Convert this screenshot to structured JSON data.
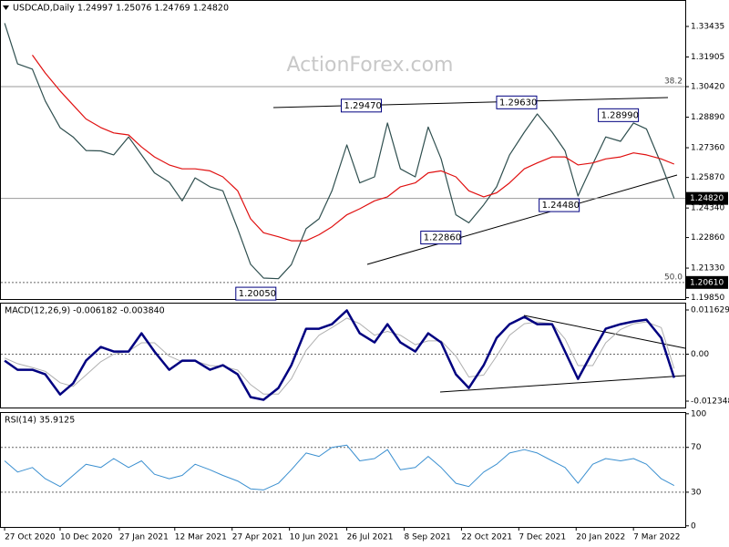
{
  "watermark": "ActionForex.com",
  "chart_data": [
    {
      "type": "line",
      "title": "USDCAD,Daily 1.24997 1.25076 1.24769 1.24820",
      "x": [
        0,
        7,
        15,
        22,
        30,
        37,
        44,
        52,
        59,
        67,
        74,
        81,
        89,
        96,
        103,
        111,
        118,
        126,
        133,
        140,
        148,
        155,
        163,
        170,
        177,
        185,
        192,
        200,
        207,
        214,
        222,
        229,
        236,
        244,
        251,
        259,
        266,
        273,
        281,
        288,
        296,
        303,
        310,
        318,
        325,
        333,
        340,
        347,
        355,
        362
      ],
      "xlim": [
        -2.5,
        368
      ],
      "ylim": [
        1.1978,
        1.3476
      ],
      "yticks": [
        1.33435,
        1.31905,
        {
          "value": 1.3042,
          "label": "1.30420"
        },
        {
          "value": 1.2889,
          "label": "1.28890"
        },
        {
          "value": 1.2736,
          "label": "1.27360"
        },
        {
          "value": 1.2587,
          "label": "1.25870"
        },
        {
          "value": 1.2434,
          "label": "1.24340"
        },
        {
          "value": 1.2286,
          "label": "1.22860"
        },
        {
          "value": 1.2133,
          "label": "1.21330"
        },
        {
          "value": 1.1985,
          "label": "1.19850"
        }
      ],
      "series": [
        {
          "color": "#2f4f4f",
          "width": 1.2,
          "values": [
            1.336,
            1.3156,
            1.313,
            1.297,
            1.2836,
            1.279,
            1.2722,
            1.272,
            1.27,
            1.279,
            1.27,
            1.261,
            1.2563,
            1.247,
            1.2585,
            1.254,
            1.252,
            1.233,
            1.2152,
            1.2083,
            1.208,
            1.215,
            1.233,
            1.238,
            1.252,
            1.275,
            1.256,
            1.259,
            1.286,
            1.263,
            1.259,
            1.284,
            1.268,
            1.24,
            1.236,
            1.245,
            1.254,
            1.27,
            1.2814,
            1.2905,
            1.2814,
            1.272,
            1.2494,
            1.2654,
            1.279,
            1.2768,
            1.286,
            1.283,
            1.2654,
            1.2482
          ]
        },
        {
          "color": "#e01010",
          "width": 1.2,
          "values": [
            null,
            null,
            1.32,
            1.311,
            1.302,
            1.295,
            1.288,
            1.2837,
            1.281,
            1.28,
            1.274,
            1.269,
            1.265,
            1.263,
            1.263,
            1.262,
            1.259,
            1.252,
            1.238,
            1.231,
            1.229,
            1.227,
            1.227,
            1.23,
            1.234,
            1.24,
            1.243,
            1.247,
            1.249,
            1.254,
            1.256,
            1.261,
            1.262,
            1.259,
            1.252,
            1.249,
            1.251,
            1.256,
            1.263,
            1.266,
            1.269,
            1.269,
            1.265,
            1.266,
            1.268,
            1.269,
            1.271,
            1.27,
            1.268,
            1.2654
          ]
        }
      ],
      "levels": [
        {
          "value": 1.3042,
          "label": "38.2"
        },
        {
          "value": 1.2061,
          "label": "50.0",
          "dashed": true
        },
        {
          "value": 1.2482
        }
      ],
      "axis_labels": [
        {
          "value": 1.2482,
          "label": "1.24820"
        },
        {
          "value": 1.2061,
          "label": "1.20610"
        }
      ],
      "annotations": [
        {
          "value": 1.2947,
          "label": "1.29470",
          "x": 182
        },
        {
          "value": 1.2963,
          "label": "1.29630",
          "x": 266
        },
        {
          "value": 1.2899,
          "label": "1.28990",
          "x": 321
        },
        {
          "value": 1.2448,
          "label": "1.24480",
          "x": 289
        },
        {
          "value": 1.2286,
          "label": "1.22860",
          "x": 225
        },
        {
          "value": 1.2005,
          "label": "1.20050",
          "x": 125
        }
      ]
    },
    {
      "type": "line",
      "title": "MACD(12,26,9) -0.006182 -0.003840",
      "x": [
        0,
        7,
        15,
        22,
        30,
        37,
        44,
        52,
        59,
        67,
        74,
        81,
        89,
        96,
        103,
        111,
        118,
        126,
        133,
        140,
        148,
        155,
        163,
        170,
        177,
        185,
        192,
        200,
        207,
        214,
        222,
        229,
        236,
        244,
        251,
        259,
        266,
        273,
        281,
        288,
        296,
        303,
        310,
        318,
        325,
        333,
        340,
        347,
        355,
        362
      ],
      "xlim": [
        -2.5,
        368
      ],
      "ylim": [
        -0.01403,
        0.01355
      ],
      "yticks": [
        0.011629,
        {
          "value": 0,
          "label": "0.00"
        },
        -0.012348
      ],
      "series": [
        {
          "color": "#b0b0b0",
          "width": 1,
          "values": [
            -0.001,
            -0.0025,
            -0.0035,
            -0.0045,
            -0.0075,
            -0.0085,
            -0.0055,
            -0.002,
            0,
            0.0008,
            0.003,
            0.003,
            -0.0005,
            -0.002,
            -0.0018,
            -0.003,
            -0.0032,
            -0.0042,
            -0.008,
            -0.0105,
            -0.0105,
            -0.0065,
            0.001,
            0.005,
            0.007,
            0.0095,
            0.008,
            0.005,
            0.006,
            0.005,
            0.0025,
            0.0035,
            0.0035,
            -0.0005,
            -0.006,
            -0.0055,
            -0.0005,
            0.005,
            0.008,
            0.0085,
            0.008,
            0.004,
            -0.003,
            -0.003,
            0.003,
            0.0065,
            0.008,
            0.0085,
            0.007,
            -0.0038
          ]
        },
        {
          "color": "#000080",
          "width": 2.5,
          "values": [
            -0.0017,
            -0.0041,
            -0.0041,
            -0.0053,
            -0.0106,
            -0.0077,
            -0.0017,
            0.0019,
            0.0007,
            0.0007,
            0.0055,
            0.0007,
            -0.0041,
            -0.0017,
            -0.0017,
            -0.0041,
            -0.0029,
            -0.0053,
            -0.0113,
            -0.012,
            -0.0089,
            -0.0029,
            0.0067,
            0.0067,
            0.0079,
            0.0115,
            0.0055,
            0.0031,
            0.0079,
            0.0031,
            0.0007,
            0.0055,
            0.0031,
            -0.0053,
            -0.0089,
            -0.0029,
            0.0043,
            0.0079,
            0.0098,
            0.0079,
            0.0079,
            0.0007,
            -0.0065,
            0.0007,
            0.0067,
            0.0079,
            0.0086,
            0.0091,
            0.0043,
            -0.0062
          ]
        }
      ],
      "levels": [
        {
          "value": 0,
          "dashed": true
        }
      ]
    },
    {
      "type": "line",
      "title": "RSI(14) 35.9125",
      "x": [
        0,
        7,
        15,
        22,
        30,
        37,
        44,
        52,
        59,
        67,
        74,
        81,
        89,
        96,
        103,
        111,
        118,
        126,
        133,
        140,
        148,
        155,
        163,
        170,
        177,
        185,
        192,
        200,
        207,
        214,
        222,
        229,
        236,
        244,
        251,
        259,
        266,
        273,
        281,
        288,
        296,
        303,
        310,
        318,
        325,
        333,
        340,
        347,
        355,
        362
      ],
      "xlim": [
        -2.5,
        368
      ],
      "ylim": [
        -1,
        101.5
      ],
      "yticks": [
        100,
        70,
        30,
        0
      ],
      "series": [
        {
          "color": "#3a8fd0",
          "width": 1,
          "values": [
            58,
            48,
            52,
            42,
            35,
            45,
            55,
            52,
            60,
            52,
            58,
            46,
            42,
            45,
            55,
            50,
            45,
            40,
            33,
            32,
            38,
            50,
            65,
            62,
            70,
            72,
            58,
            60,
            68,
            50,
            52,
            62,
            52,
            38,
            35,
            48,
            55,
            65,
            68,
            65,
            58,
            52,
            38,
            55,
            60,
            58,
            60,
            55,
            42,
            35.9
          ]
        }
      ],
      "levels": [
        {
          "value": 70,
          "dashed": true
        },
        {
          "value": 30,
          "dashed": true
        }
      ],
      "xticks": [
        {
          "value": 0,
          "label": "27 Oct 2020"
        },
        {
          "value": 30,
          "label": "10 Dec 2020"
        },
        {
          "value": 62,
          "label": "27 Jan 2021"
        },
        {
          "value": 92,
          "label": "12 Mar 2021"
        },
        {
          "value": 123,
          "label": "27 Apr 2021"
        },
        {
          "value": 154,
          "label": "10 Jun 2021"
        },
        {
          "value": 185,
          "label": "26 Jul 2021"
        },
        {
          "value": 216,
          "label": "8 Sep 2021"
        },
        {
          "value": 247,
          "label": "22 Oct 2021"
        },
        {
          "value": 278,
          "label": "7 Dec 2021"
        },
        {
          "value": 309,
          "label": "20 Jan 2022"
        },
        {
          "value": 340,
          "label": "7 Mar 2022"
        }
      ]
    }
  ]
}
